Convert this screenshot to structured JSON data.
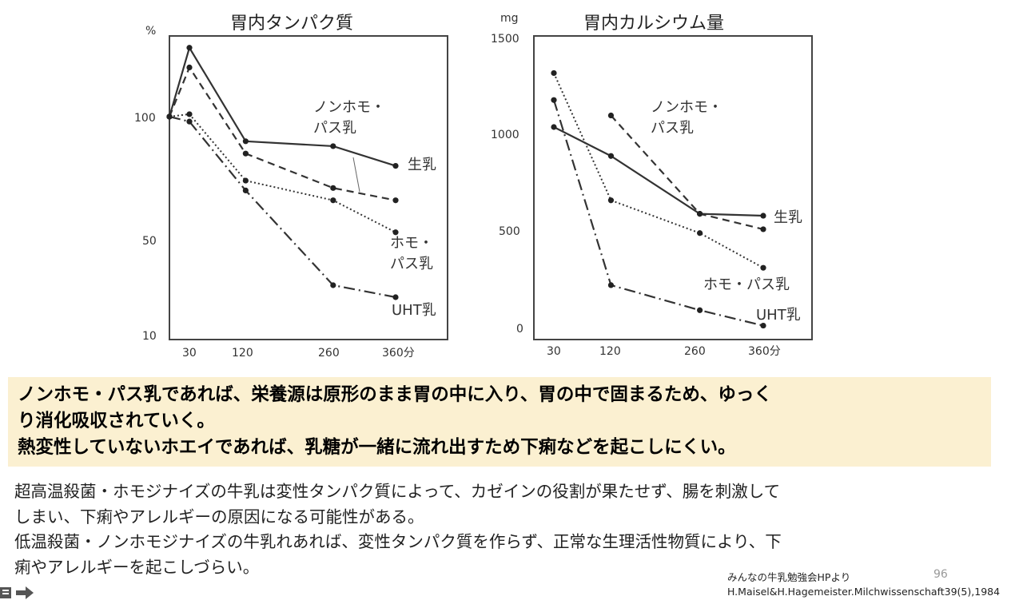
{
  "charts": [
    {
      "title": "胃内タンパク質",
      "unit": "%",
      "y_ticks": [
        "100",
        "50",
        "10"
      ],
      "x_ticks": [
        "30",
        "120",
        "260",
        "360分"
      ],
      "annotations": {
        "raw_milk": "生乳",
        "nonhomo_1": "ノンホモ・",
        "nonhomo_2": "パス乳",
        "homo_1": "ホモ・",
        "homo_2": "パス乳",
        "uht": "UHT乳"
      }
    },
    {
      "title": "胃内カルシウム量",
      "unit": "mg",
      "y_ticks": [
        "1500",
        "1000",
        "500",
        "0"
      ],
      "x_ticks": [
        "30",
        "120",
        "260",
        "360分"
      ],
      "annotations": {
        "raw_milk": "生乳",
        "nonhomo_1": "ノンホモ・",
        "nonhomo_2": "パス乳",
        "homo": "ホモ・パス乳",
        "uht": "UHT乳"
      }
    }
  ],
  "chart_data": [
    {
      "type": "line",
      "title": "胃内タンパク質",
      "ylabel": "%",
      "x": [
        0,
        30,
        120,
        260,
        360
      ],
      "ylim": [
        10,
        100
      ],
      "series": [
        {
          "name": "生乳",
          "style": "solid",
          "values": [
            100,
            128,
            90,
            88,
            80
          ]
        },
        {
          "name": "ノンホモ・パス乳",
          "style": "dashed",
          "values": [
            100,
            120,
            85,
            71,
            66
          ]
        },
        {
          "name": "ホモ・パス乳",
          "style": "dotted",
          "values": [
            100,
            101,
            74,
            66,
            53
          ]
        },
        {
          "name": "UHT乳",
          "style": "dashdot",
          "values": [
            100,
            98,
            70,
            31,
            26
          ]
        }
      ]
    },
    {
      "type": "line",
      "title": "胃内カルシウム量",
      "ylabel": "mg",
      "x": [
        30,
        120,
        260,
        360
      ],
      "ylim": [
        0,
        1500
      ],
      "series": [
        {
          "name": "生乳",
          "style": "solid",
          "values": [
            1040,
            890,
            590,
            580
          ]
        },
        {
          "name": "ノンホモ・パス乳",
          "style": "dashed",
          "values": [
            null,
            1100,
            590,
            510
          ]
        },
        {
          "name": "ホモ・パス乳",
          "style": "dotted",
          "values": [
            1320,
            660,
            490,
            310
          ]
        },
        {
          "name": "UHT乳",
          "style": "dashdot",
          "values": [
            1180,
            220,
            90,
            10
          ]
        }
      ]
    }
  ],
  "highlight": {
    "line1": "ノンホモ・パス乳であれば、栄養源は原形のまま胃の中に入り、胃の中で固まるため、ゆっく",
    "line2": "り消化吸収されていく。",
    "line3": "熱変性していないホエイであれば、乳糖が一緒に流れ出すため下痢などを起こしにくい。"
  },
  "body": {
    "line1": "超高温殺菌・ホモジナイズの牛乳は変性タンパク質によって、カゼインの役割が果たせず、腸を刺激して",
    "line2": "しまい、下痢やアレルギーの原因になる可能性がある。",
    "line3": "低温殺菌・ノンホモジナイズの牛乳れあれば、変性タンパク質を作らず、正常な生理活性物質により、下",
    "line4": "痢やアレルギーを起こしづらい。"
  },
  "source": {
    "line1": "みんなの牛乳勉強会HPより",
    "line2": "H.Maisel&H.Hagemeister.Milchwissenschaft39(5),1984"
  },
  "page_number": "96",
  "nav_icons": [
    "slide-menu-icon",
    "next-arrow-icon"
  ]
}
